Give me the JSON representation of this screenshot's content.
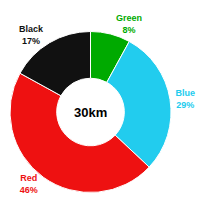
{
  "chart_data": {
    "type": "donut",
    "title": "30km",
    "categories": [
      "Green",
      "Blue",
      "Red",
      "Black"
    ],
    "values": [
      8,
      29,
      46,
      17
    ],
    "value_labels": [
      "8%",
      "29%",
      "46%",
      "17%"
    ],
    "colors": [
      "#00aa00",
      "#22ccee",
      "#ee1111",
      "#111111"
    ],
    "data_labels": true
  }
}
